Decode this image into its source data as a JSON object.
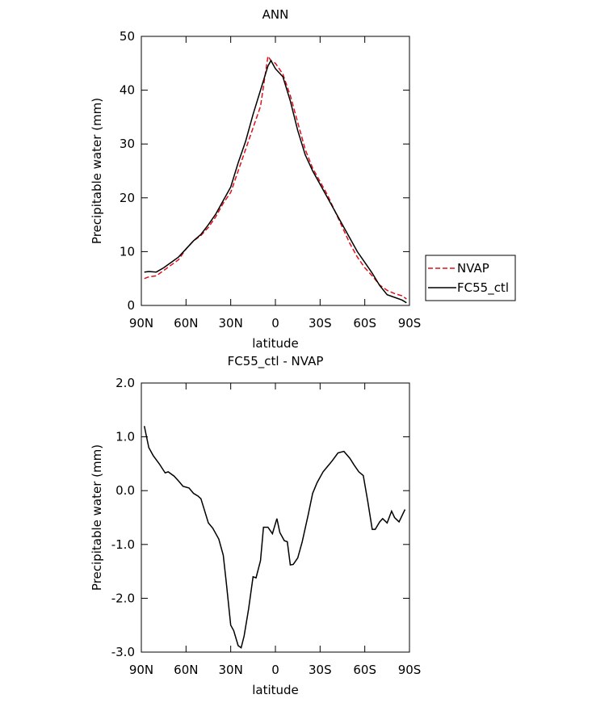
{
  "chart_data": [
    {
      "type": "line",
      "title": "ANN",
      "xlabel": "latitude",
      "ylabel": "Precipitable water (mm)",
      "x": [
        88,
        85,
        80,
        75,
        70,
        65,
        60,
        55,
        50,
        45,
        40,
        35,
        30,
        25,
        20,
        15,
        10,
        5,
        3,
        0,
        -5,
        -10,
        -15,
        -20,
        -25,
        -30,
        -35,
        -40,
        -45,
        -50,
        -55,
        -60,
        -65,
        -70,
        -75,
        -80,
        -85,
        -88
      ],
      "series": [
        {
          "name": "NVAP",
          "color": "#e0101a",
          "dash": true,
          "values": [
            5,
            5.3,
            5.5,
            6.5,
            7.5,
            8.5,
            10.5,
            12,
            13,
            14.5,
            16.5,
            19,
            21,
            25,
            29,
            33,
            37,
            46.3,
            45.5,
            45,
            43,
            39,
            34,
            29,
            25.5,
            23,
            20.5,
            17.5,
            14.5,
            11.5,
            9,
            7,
            5.5,
            3.8,
            2.8,
            2.2,
            1.8,
            1.2
          ]
        },
        {
          "name": "FC55_ctl",
          "color": "#000000",
          "dash": false,
          "values": [
            6.2,
            6.3,
            6.2,
            7,
            8,
            9,
            10.5,
            12,
            13.2,
            15,
            17,
            19.5,
            22,
            26.5,
            30.5,
            35.5,
            40,
            44.5,
            45.5,
            44,
            42.5,
            38,
            32.5,
            28,
            25,
            22.5,
            20,
            17.5,
            15,
            12.5,
            10,
            8,
            6,
            3.7,
            2,
            1.5,
            1,
            0.5
          ]
        }
      ],
      "xlim": [
        90,
        -90
      ],
      "xticks": [
        {
          "value": 90,
          "label": "90N"
        },
        {
          "value": 60,
          "label": "60N"
        },
        {
          "value": 30,
          "label": "30N"
        },
        0,
        {
          "value": -30,
          "label": "30S"
        },
        {
          "value": -60,
          "label": "60S"
        },
        {
          "value": -90,
          "label": "90S"
        }
      ],
      "ylim": [
        0,
        50
      ],
      "yticks": [
        0,
        10,
        20,
        30,
        40,
        50
      ],
      "legend": "right"
    },
    {
      "type": "line",
      "title": "FC55_ctl - NVAP",
      "xlabel": "latitude",
      "ylabel": "Precipitable water (mm)",
      "x": [
        88,
        85,
        82,
        78,
        74,
        72,
        68,
        65,
        62,
        58,
        55,
        52,
        50,
        45,
        42,
        38,
        35,
        33,
        30,
        28,
        25,
        23,
        21,
        18,
        15,
        13,
        10,
        8,
        5,
        2,
        -1,
        -3,
        -6,
        -8,
        -10,
        -12,
        -15,
        -18,
        -22,
        -25,
        -28,
        -32,
        -35,
        -38,
        -42,
        -46,
        -50,
        -53,
        -56,
        -59,
        -62,
        -65,
        -67,
        -70,
        -72,
        -75,
        -78,
        -80,
        -83,
        -87
      ],
      "series": [
        {
          "name": "FC55_ctl - NVAP",
          "color": "#000000",
          "dash": false,
          "values": [
            1.2,
            0.8,
            0.65,
            0.5,
            0.33,
            0.35,
            0.27,
            0.18,
            0.08,
            0.05,
            -0.05,
            -0.1,
            -0.15,
            -0.6,
            -0.7,
            -0.9,
            -1.2,
            -1.7,
            -2.5,
            -2.6,
            -2.88,
            -2.92,
            -2.7,
            -2.2,
            -1.6,
            -1.62,
            -1.3,
            -0.68,
            -0.68,
            -0.8,
            -0.52,
            -0.78,
            -0.93,
            -0.95,
            -1.38,
            -1.37,
            -1.25,
            -0.95,
            -0.45,
            -0.05,
            0.15,
            0.35,
            0.45,
            0.55,
            0.7,
            0.73,
            0.6,
            0.47,
            0.35,
            0.28,
            -0.2,
            -0.72,
            -0.72,
            -0.58,
            -0.52,
            -0.6,
            -0.38,
            -0.5,
            -0.58,
            -0.35
          ]
        }
      ],
      "xlim": [
        90,
        -90
      ],
      "xticks": [
        {
          "value": 90,
          "label": "90N"
        },
        {
          "value": 60,
          "label": "60N"
        },
        {
          "value": 30,
          "label": "30N"
        },
        0,
        {
          "value": -30,
          "label": "30S"
        },
        {
          "value": -60,
          "label": "60S"
        },
        {
          "value": -90,
          "label": "90S"
        }
      ],
      "ylim": [
        -3,
        2
      ],
      "yticks": [
        {
          "value": 2,
          "label": "2.0"
        },
        {
          "value": 1,
          "label": "1.0"
        },
        {
          "value": 0,
          "label": "0.0"
        },
        {
          "value": -1,
          "label": "-1.0"
        },
        {
          "value": -2,
          "label": "-2.0"
        },
        {
          "value": -3,
          "label": "-3.0"
        }
      ]
    }
  ]
}
